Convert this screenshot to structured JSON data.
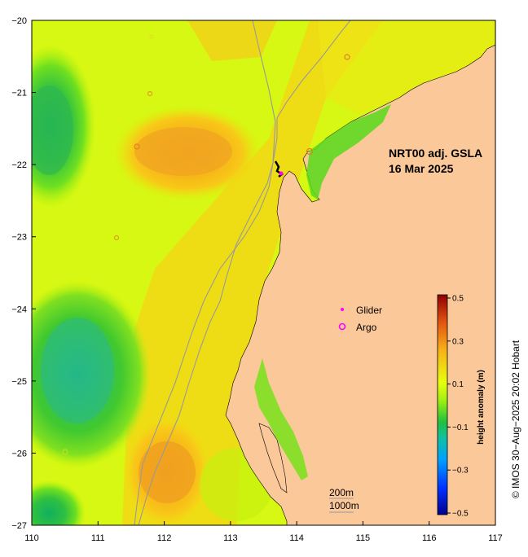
{
  "map": {
    "lon_ticks": [
      "110",
      "111",
      "112",
      "113",
      "114",
      "115",
      "116",
      "117"
    ],
    "lat_ticks": [
      "−20",
      "−21",
      "−22",
      "−23",
      "−24",
      "−25",
      "−26",
      "−27"
    ],
    "product_title": "NRT00 adj. GSLA",
    "date": "16 Mar 2025",
    "legend": {
      "glider_label": "Glider",
      "argo_label": "Argo"
    },
    "isobaths": [
      "200m",
      "1000m"
    ],
    "colorbar": {
      "label": "height anomaly (m)",
      "ticks": [
        "0.5",
        "0.3",
        "0.1",
        "−0.1",
        "−0.3",
        "−0.5"
      ]
    },
    "credit": "© IMOS 30−Aug−2025 20:02 Hobart",
    "colors": {
      "land": "#fbc89a",
      "positive_high": "#f0a020",
      "neutral": "#d8ff10",
      "negative": "#20c040"
    }
  }
}
